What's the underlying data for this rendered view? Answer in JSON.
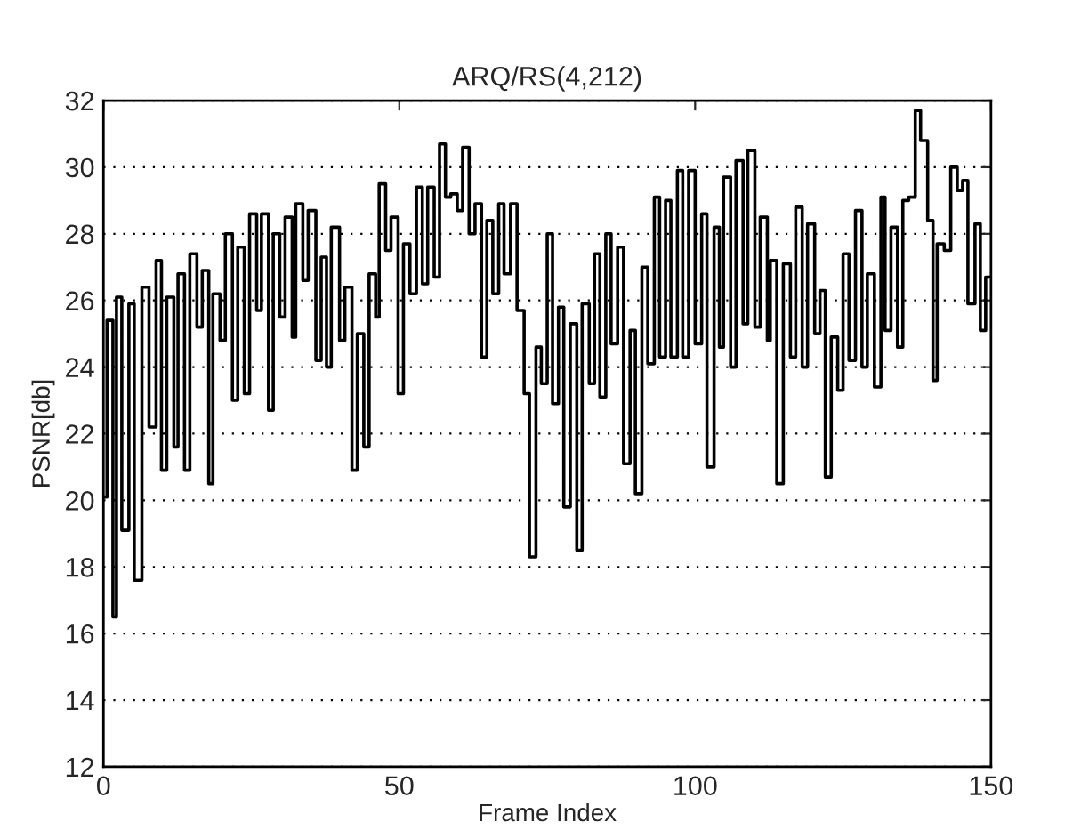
{
  "chart_data": {
    "type": "step",
    "title": "ARQ/RS(4,212)",
    "xlabel": "Frame Index",
    "ylabel": "PSNR[db]",
    "xlim": [
      0,
      150
    ],
    "xticks": [
      0,
      50,
      100,
      150
    ],
    "ylim": [
      12,
      32
    ],
    "yticks": [
      12,
      14,
      16,
      18,
      20,
      22,
      24,
      26,
      28,
      30,
      32
    ],
    "grid": "y",
    "line_style": "solid",
    "marker": "none",
    "series": [
      {
        "color": "#000000",
        "x": [
          0,
          0.6,
          1.6,
          2.2,
          3.1,
          4.3,
          5.2,
          6.5,
          7.7,
          8.9,
          9.8,
          10.7,
          11.9,
          12.6,
          13.7,
          14.6,
          15.8,
          16.7,
          17.8,
          18.5,
          19.7,
          20.6,
          21.8,
          22.7,
          23.8,
          24.7,
          25.9,
          26.7,
          27.9,
          28.7,
          29.8,
          30.7,
          31.9,
          32.5,
          33.7,
          34.6,
          35.9,
          36.8,
          37.7,
          38.5,
          39.9,
          40.8,
          42.0,
          42.9,
          44.0,
          44.9,
          46.0,
          46.6,
          47.7,
          48.6,
          49.8,
          50.7,
          51.8,
          52.9,
          53.9,
          54.8,
          55.9,
          56.8,
          57.8,
          58.7,
          59.8,
          60.7,
          61.8,
          62.8,
          63.9,
          64.8,
          65.8,
          66.8,
          67.7,
          68.8,
          69.9,
          71.1,
          72.0,
          73.1,
          74.0,
          75.0,
          75.9,
          76.9,
          77.8,
          78.9,
          80.0,
          80.9,
          82.1,
          83.0,
          83.9,
          84.9,
          85.8,
          86.9,
          87.9,
          89.0,
          89.9,
          91.0,
          92.0,
          93.1,
          94.0,
          95.0,
          95.9,
          97.0,
          97.9,
          98.9,
          100.0,
          101.1,
          102.0,
          103.2,
          104.1,
          104.8,
          106.0,
          106.9,
          108.1,
          108.9,
          110.1,
          111.0,
          112.2,
          112.7,
          113.8,
          114.9,
          116.1,
          117.0,
          118.1,
          119.0,
          120.2,
          121.1,
          122.0,
          123.0,
          124.1,
          125.0,
          126.0,
          127.1,
          128.2,
          129.1,
          130.3,
          131.4,
          132.1,
          133.1,
          134.2,
          135.1,
          136.1,
          137.2,
          138.1,
          139.3,
          140.2,
          140.9,
          142.1,
          143.2,
          144.3,
          145.2,
          146.1,
          147.3,
          148.2,
          149.1,
          150
        ],
        "values": [
          20.1,
          25.4,
          16.5,
          26.1,
          19.1,
          25.9,
          17.6,
          26.4,
          22.2,
          27.2,
          20.9,
          26.1,
          21.6,
          26.8,
          20.9,
          27.4,
          25.2,
          26.9,
          20.5,
          26.2,
          24.8,
          28.0,
          23.0,
          27.6,
          23.2,
          28.6,
          25.7,
          28.6,
          22.7,
          28.0,
          25.5,
          28.5,
          24.9,
          28.9,
          26.6,
          28.7,
          24.2,
          27.3,
          24.0,
          28.2,
          24.8,
          26.4,
          20.9,
          25.0,
          21.6,
          26.8,
          25.5,
          29.5,
          27.5,
          28.5,
          23.2,
          27.7,
          26.2,
          29.4,
          26.5,
          29.4,
          26.7,
          30.7,
          29.1,
          29.2,
          28.7,
          30.6,
          28.0,
          28.9,
          24.3,
          28.4,
          26.2,
          28.9,
          26.8,
          28.9,
          25.7,
          23.2,
          18.3,
          24.6,
          23.5,
          28.0,
          22.9,
          25.8,
          19.8,
          25.3,
          18.5,
          25.9,
          23.5,
          27.4,
          23.1,
          28.0,
          24.7,
          27.6,
          21.1,
          25.1,
          20.2,
          27.0,
          24.1,
          29.1,
          24.3,
          29.0,
          24.3,
          29.9,
          24.3,
          29.9,
          24.7,
          28.6,
          21.0,
          28.2,
          24.6,
          29.7,
          24.0,
          30.2,
          25.3,
          30.5,
          25.2,
          28.5,
          24.8,
          27.2,
          20.5,
          27.1,
          24.3,
          28.8,
          24.0,
          28.3,
          25.0,
          26.3,
          20.7,
          24.9,
          23.3,
          27.4,
          24.2,
          28.7,
          24.0,
          26.8,
          23.4,
          29.1,
          25.1,
          28.2,
          24.6,
          29.0,
          29.1,
          31.7,
          30.8,
          28.4,
          23.6,
          27.7,
          27.5,
          30.0,
          29.3,
          29.6,
          25.9,
          28.3,
          25.1,
          26.7,
          26.7
        ]
      }
    ]
  }
}
